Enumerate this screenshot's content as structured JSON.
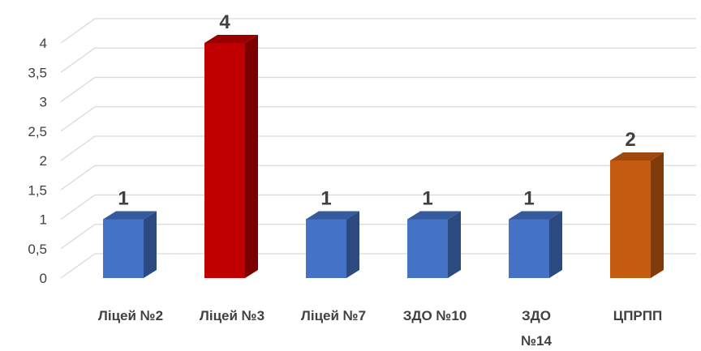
{
  "chart_data": {
    "type": "bar",
    "style": "3d-column",
    "title": "",
    "xlabel": "",
    "ylabel": "",
    "categories": [
      [
        "Ліцей №2"
      ],
      [
        "Ліцей №3"
      ],
      [
        "Ліцей №7"
      ],
      [
        "ЗДО №10"
      ],
      [
        "ЗДО",
        "№14"
      ],
      [
        "ЦПРПП"
      ]
    ],
    "values": [
      1,
      4,
      1,
      1,
      1,
      2
    ],
    "value_labels": [
      "1",
      "4",
      "1",
      "1",
      "1",
      "2"
    ],
    "y_ticks": [
      "0",
      "0,5",
      "1",
      "1,5",
      "2",
      "2,5",
      "3",
      "3,5",
      "4"
    ],
    "y_tick_values": [
      0,
      0.5,
      1,
      1.5,
      2,
      2.5,
      3,
      3.5,
      4
    ],
    "ylim": [
      0,
      4
    ],
    "grid": true,
    "legend": false,
    "colors": [
      "#4472c4",
      "#c00000",
      "#4472c4",
      "#4472c4",
      "#4472c4",
      "#c55a11"
    ]
  }
}
